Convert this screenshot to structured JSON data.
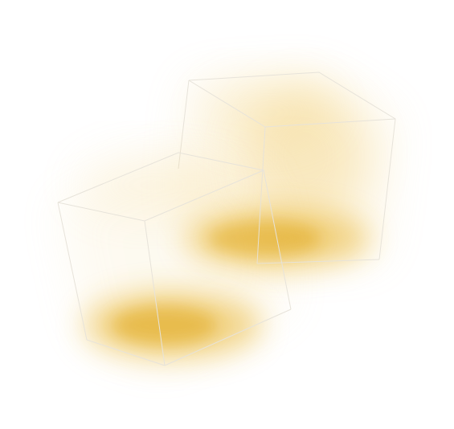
{
  "scene": {
    "background": "#ffffff",
    "cube_edge_color": "#e7e3da",
    "glow_color": "#e8b42f",
    "cubes": [
      {
        "name": "left-cube",
        "description_shape": "wireframe-cube-with-glow"
      },
      {
        "name": "right-cube",
        "description_shape": "wireframe-cube-with-glow"
      }
    ]
  }
}
